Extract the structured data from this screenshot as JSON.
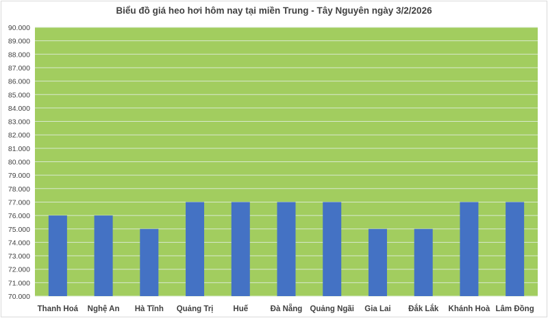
{
  "chart_data": {
    "type": "bar",
    "title": "Biểu đồ giá heo hơi hôm nay tại miền Trung - Tây Nguyên ngày 3/2/2026",
    "xlabel": "",
    "ylabel": "",
    "categories": [
      "Thanh Hoá",
      "Nghệ An",
      "Hà Tĩnh",
      "Quảng Trị",
      "Huế",
      "Đà Nẵng",
      "Quảng Ngãi",
      "Gia Lai",
      "Đắk Lắk",
      "Khánh Hoà",
      "Lâm Đồng"
    ],
    "values": [
      76000,
      76000,
      75000,
      77000,
      77000,
      77000,
      77000,
      75000,
      75000,
      77000,
      77000
    ],
    "ylim": [
      70000,
      90000
    ],
    "ytick_step": 1000,
    "ytick_labels": [
      "70.000",
      "71.000",
      "72.000",
      "73.000",
      "74.000",
      "75.000",
      "76.000",
      "77.000",
      "78.000",
      "79.000",
      "80.000",
      "81.000",
      "82.000",
      "83.000",
      "84.000",
      "85.000",
      "86.000",
      "87.000",
      "88.000",
      "89.000",
      "90.000"
    ],
    "grid": true,
    "legend": "none",
    "colors": {
      "bar": "#4472c4",
      "plot_background": "#a2cd5f",
      "gridline": "#d9ead0"
    }
  }
}
